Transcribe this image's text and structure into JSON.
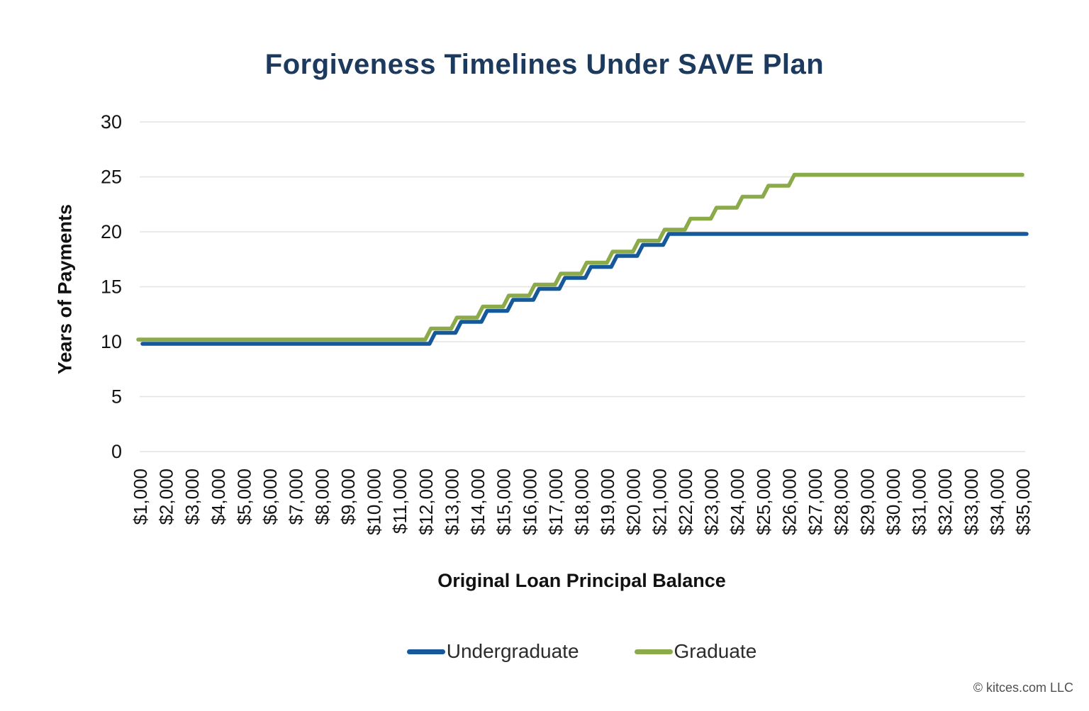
{
  "colors": {
    "title": "#1c3a5e",
    "undergraduate_line": "#15599B",
    "graduate_line": "#8BAA4A",
    "gridline": "#e3e3e3",
    "tick_text": "#141414",
    "legend_text": "#2b2b2b",
    "footer_text": "#4f4f4f"
  },
  "footer": "© kitces.com LLC",
  "chart_data": {
    "type": "line",
    "step": true,
    "title": "Forgiveness Timelines Under SAVE Plan",
    "xlabel": "Original Loan Principal Balance",
    "ylabel": "Years of Payments",
    "ylim": [
      0,
      30
    ],
    "y_ticks": [
      0,
      5,
      10,
      15,
      20,
      25,
      30
    ],
    "grid": "horizontal",
    "legend_position": "bottom",
    "categories": [
      "$1,000",
      "$2,000",
      "$3,000",
      "$4,000",
      "$5,000",
      "$6,000",
      "$7,000",
      "$8,000",
      "$9,000",
      "$10,000",
      "$11,000",
      "$12,000",
      "$13,000",
      "$14,000",
      "$15,000",
      "$16,000",
      "$17,000",
      "$18,000",
      "$19,000",
      "$20,000",
      "$21,000",
      "$22,000",
      "$23,000",
      "$24,000",
      "$25,000",
      "$26,000",
      "$27,000",
      "$28,000",
      "$29,000",
      "$30,000",
      "$31,000",
      "$32,000",
      "$33,000",
      "$34,000",
      "$35,000"
    ],
    "series": [
      {
        "name": "Undergraduate",
        "color": "#15599B",
        "cap_years": 20,
        "values": [
          10,
          10,
          10,
          10,
          10,
          10,
          10,
          10,
          10,
          10,
          10,
          10,
          11,
          12,
          13,
          14,
          15,
          16,
          17,
          18,
          19,
          20,
          20,
          20,
          20,
          20,
          20,
          20,
          20,
          20,
          20,
          20,
          20,
          20,
          20
        ]
      },
      {
        "name": "Graduate",
        "color": "#8BAA4A",
        "cap_years": 25,
        "values": [
          10,
          10,
          10,
          10,
          10,
          10,
          10,
          10,
          10,
          10,
          10,
          10,
          11,
          12,
          13,
          14,
          15,
          16,
          17,
          18,
          19,
          20,
          21,
          22,
          23,
          24,
          25,
          25,
          25,
          25,
          25,
          25,
          25,
          25,
          25
        ]
      }
    ]
  }
}
